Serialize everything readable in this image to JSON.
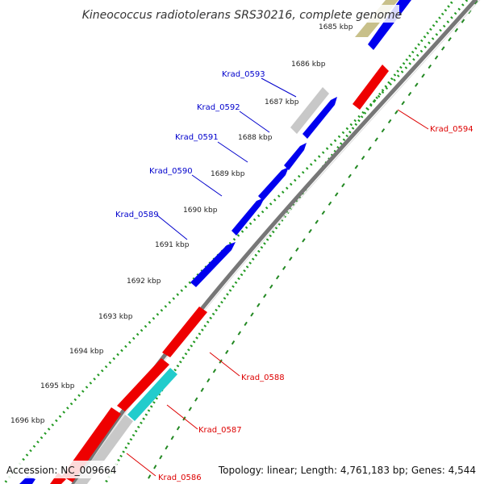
{
  "header": {
    "title": "Kineococcus radiotolerans SRS30216, complete genome"
  },
  "footer": {
    "accession": "Accession: NC_009664",
    "summary": "Topology: linear; Length: 4,761,183 bp; Genes: 4,544"
  },
  "axis": {
    "tick_labels": [
      "1685 kbp",
      "1686 kbp",
      "1687 kbp",
      "1688 kbp",
      "1689 kbp",
      "1690 kbp",
      "1691 kbp",
      "1692 kbp",
      "1693 kbp",
      "1694 kbp",
      "1695 kbp",
      "1696 kbp"
    ]
  },
  "genes": {
    "top": [
      "Krad_0593",
      "Krad_0592",
      "Krad_0591",
      "Krad_0590",
      "Krad_0589"
    ],
    "right": [
      "Krad_0594",
      "Krad_0588",
      "Krad_0587",
      "Krad_0586"
    ]
  },
  "colors": {
    "forward_gene": "#0000ee",
    "reverse_gene": "#ee0000",
    "gray_feature": "#c8c8c8",
    "cyan_feature": "#22cccc",
    "olive_feature": "#c8c08a",
    "backbone": "#777777",
    "dots": "#229922",
    "forward_label": "#0000cc",
    "reverse_label": "#dd0000"
  }
}
